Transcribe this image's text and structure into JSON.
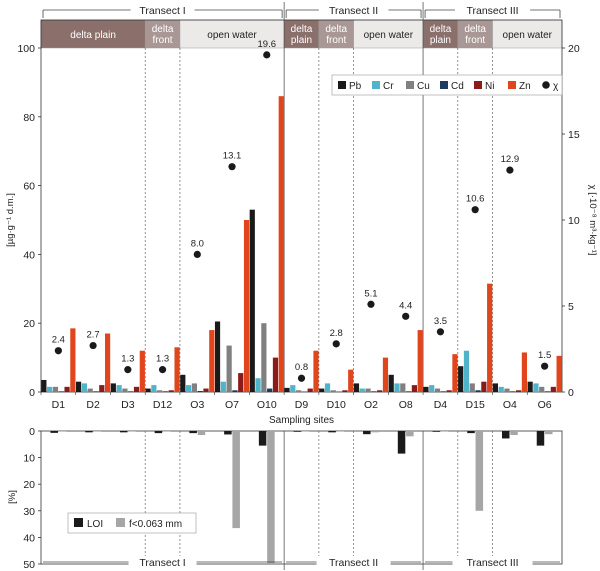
{
  "chart_data": [
    {
      "type": "bar",
      "title": "",
      "xlabel": "Sampling sites",
      "ylabel": "[µg·g⁻¹ d.m.]",
      "ylim": [
        0,
        100
      ],
      "y_ticks": [
        "0",
        "20",
        "40",
        "60",
        "80",
        "100"
      ],
      "y2label": "χ [·10⁻⁸ m³·kg⁻¹]",
      "y2lim": [
        0,
        20
      ],
      "y2_ticks": [
        "0",
        "5",
        "10",
        "15",
        "20"
      ],
      "categories": [
        "D1",
        "D2",
        "D3",
        "D12",
        "O3",
        "O7",
        "O10",
        "D9",
        "D10",
        "O2",
        "O8",
        "D4",
        "D15",
        "O4",
        "O6"
      ],
      "series": [
        {
          "name": "Pb",
          "color": "#1a1a1a",
          "values": [
            3.5,
            3.0,
            2.5,
            1.0,
            5.0,
            20.5,
            53.0,
            1.2,
            1.0,
            2.5,
            5.0,
            1.5,
            7.5,
            2.5,
            3.0
          ]
        },
        {
          "name": "Cr",
          "color": "#4fb3c9",
          "values": [
            1.5,
            2.5,
            2.0,
            2.0,
            2.0,
            3.0,
            4.0,
            2.0,
            2.5,
            1.0,
            2.5,
            2.0,
            12.0,
            1.5,
            2.5
          ]
        },
        {
          "name": "Cu",
          "color": "#808080",
          "values": [
            1.5,
            1.0,
            1.0,
            0.5,
            2.5,
            13.5,
            20.0,
            0.5,
            0.5,
            1.0,
            2.5,
            1.0,
            2.5,
            1.0,
            1.5
          ]
        },
        {
          "name": "Cd",
          "color": "#1e3a5f",
          "values": [
            0.2,
            0.2,
            0.2,
            0.2,
            0.3,
            0.5,
            1.0,
            0.1,
            0.1,
            0.2,
            0.2,
            0.2,
            0.5,
            0.2,
            0.2
          ]
        },
        {
          "name": "Ni",
          "color": "#8b1a1a",
          "values": [
            1.5,
            2.0,
            1.5,
            0.5,
            1.0,
            5.5,
            10.0,
            1.0,
            0.5,
            0.5,
            2.0,
            0.5,
            3.0,
            0.5,
            1.5
          ]
        },
        {
          "name": "Zn",
          "color": "#e0451b",
          "values": [
            18.5,
            17.0,
            12.0,
            13.0,
            18.0,
            50.0,
            86.0,
            12.0,
            6.5,
            10.0,
            18.0,
            11.0,
            31.5,
            11.5,
            10.5
          ]
        }
      ],
      "chi": {
        "name": "χ",
        "color": "#1a1a1a",
        "values": [
          2.4,
          2.7,
          1.3,
          1.3,
          8.0,
          13.1,
          19.6,
          0.8,
          2.8,
          5.1,
          4.4,
          3.5,
          10.6,
          12.9,
          1.5
        ],
        "labels": [
          "2.4",
          "2.7",
          "1.3",
          "1.3",
          "8.0",
          "13.1",
          "19.6",
          "0.8",
          "2.8",
          "5.1",
          "4.4",
          "3.5",
          "10.6",
          "12.9",
          "1.5"
        ]
      },
      "transects": [
        {
          "name": "Transect I",
          "count": 7,
          "zones": [
            {
              "label": [
                "delta plain"
              ],
              "count": 3,
              "fill": "#8a6f6b"
            },
            {
              "label": [
                "delta",
                "front"
              ],
              "count": 1,
              "fill": "#a89794"
            },
            {
              "label": [
                "open water"
              ],
              "count": 3,
              "fill": "#eceae8"
            }
          ]
        },
        {
          "name": "Transect II",
          "count": 4,
          "zones": [
            {
              "label": [
                "delta",
                "plain"
              ],
              "count": 1,
              "fill": "#8a6f6b"
            },
            {
              "label": [
                "delta",
                "front"
              ],
              "count": 1,
              "fill": "#a89794"
            },
            {
              "label": [
                "open water"
              ],
              "count": 2,
              "fill": "#eceae8"
            }
          ]
        },
        {
          "name": "Transect III",
          "count": 4,
          "zones": [
            {
              "label": [
                "delta",
                "plain"
              ],
              "count": 1,
              "fill": "#8a6f6b"
            },
            {
              "label": [
                "delta",
                "front"
              ],
              "count": 1,
              "fill": "#a89794"
            },
            {
              "label": [
                "open water"
              ],
              "count": 2,
              "fill": "#eceae8"
            }
          ]
        }
      ],
      "legend_position": "top-right",
      "grid": false
    },
    {
      "type": "bar",
      "title": "",
      "ylabel": "[%]",
      "ylim": [
        0,
        50
      ],
      "y_reversed": true,
      "y_ticks": [
        "0",
        "10",
        "20",
        "30",
        "40",
        "50"
      ],
      "categories": [
        "D1",
        "D2",
        "D3",
        "D12",
        "O3",
        "O7",
        "O10",
        "D9",
        "D10",
        "O2",
        "O8",
        "D4",
        "D15",
        "O4",
        "O6"
      ],
      "series": [
        {
          "name": "LOI",
          "color": "#1a1a1a",
          "values": [
            0.7,
            0.5,
            0.5,
            0.8,
            0.8,
            1.3,
            5.5,
            0.3,
            0.5,
            1.2,
            8.5,
            0.3,
            0.8,
            2.8,
            5.5
          ]
        },
        {
          "name": "f<0.063 mm",
          "color": "#a6a6a6",
          "values": [
            0.2,
            0.2,
            0.2,
            0.2,
            1.5,
            36.5,
            52.0,
            0.2,
            0.2,
            0.5,
            2.0,
            0.2,
            30.0,
            1.5,
            1.2
          ]
        }
      ],
      "transects": [
        "Transect I",
        "Transect II",
        "Transect III"
      ],
      "legend_position": "bottom-left",
      "grid": false
    }
  ]
}
